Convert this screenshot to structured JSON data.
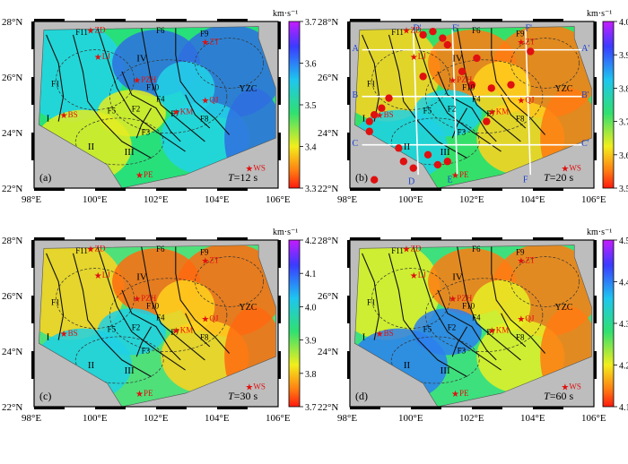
{
  "panels": [
    {
      "id": "a",
      "label": "(a)",
      "period_var": "T",
      "period_val": "=12 s",
      "colorbar": {
        "unit": "km·s⁻¹",
        "ticks": [
          "3.7",
          "3.6",
          "3.5",
          "3.4",
          "3.3"
        ]
      },
      "colors": {
        "c1": "#2f6fe0",
        "c2": "#22d3e8",
        "c3": "#27e07a",
        "c4": "#e4ec22"
      }
    },
    {
      "id": "b",
      "label": "(b)",
      "period_var": "T",
      "period_val": "=20 s",
      "colorbar": {
        "unit": "km·s⁻¹",
        "ticks": [
          "4.0",
          "3.9",
          "3.8",
          "3.7",
          "3.6",
          "3.5"
        ]
      },
      "colors": {
        "c1": "#ff7a12",
        "c2": "#ffd21e",
        "c3": "#35e06a",
        "c4": "#1fd0e5"
      },
      "profiles": [
        "A",
        "A'",
        "B",
        "B'",
        "C",
        "C'",
        "D",
        "D'",
        "E",
        "E'",
        "F",
        "F'"
      ]
    },
    {
      "id": "c",
      "label": "(c)",
      "period_var": "T",
      "period_val": "=30 s",
      "colorbar": {
        "unit": "km·s⁻¹",
        "ticks": [
          "4.2",
          "4.1",
          "4.0",
          "3.9",
          "3.8",
          "3.7"
        ]
      },
      "colors": {
        "c1": "#ff6a10",
        "c2": "#ffd21e",
        "c3": "#4fe07a",
        "c4": "#1fd0e5"
      }
    },
    {
      "id": "d",
      "label": "(d)",
      "period_var": "T",
      "period_val": "=60 s",
      "colorbar": {
        "unit": "km·s⁻¹",
        "ticks": [
          "4.5",
          "4.4",
          "4.3",
          "4.2",
          "4.1"
        ]
      },
      "colors": {
        "c1": "#ff7a12",
        "c2": "#e6f025",
        "c3": "#3ee07e",
        "c4": "#2b7ff0"
      }
    }
  ],
  "axes": {
    "lat_labels": [
      "28°N",
      "26°N",
      "24°N",
      "22°N"
    ],
    "lon_labels": [
      "98°E",
      "100°E",
      "102°E",
      "104°E",
      "106°E"
    ]
  },
  "features": {
    "faults": [
      "F1",
      "F2",
      "F3",
      "F4",
      "F5",
      "F6",
      "F7",
      "F8",
      "F9",
      "F10",
      "F11"
    ],
    "blocks": [
      "I",
      "II",
      "III",
      "IV"
    ],
    "region": "YZC",
    "stations": [
      "ZD",
      "LJ",
      "PZH",
      "ZT",
      "QJ",
      "KM",
      "BS",
      "PE",
      "WS"
    ]
  }
}
